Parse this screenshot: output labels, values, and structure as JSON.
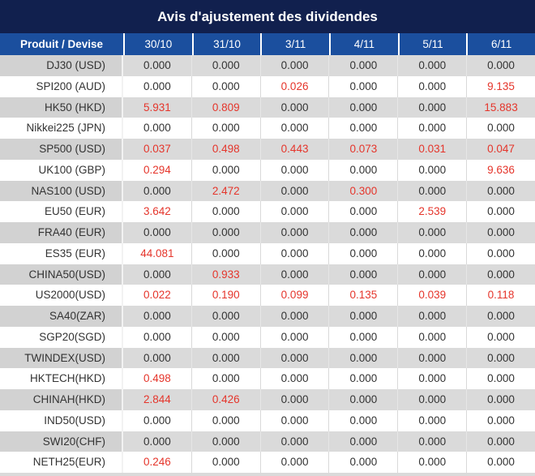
{
  "title": "Avis d'ajustement des dividendes",
  "table": {
    "product_header": "Produit / Devise",
    "date_headers": [
      "30/10",
      "31/10",
      "3/11",
      "4/11",
      "5/11",
      "6/11"
    ],
    "rows": [
      {
        "product": "DJ30 (USD)",
        "values": [
          "0.000",
          "0.000",
          "0.000",
          "0.000",
          "0.000",
          "0.000"
        ],
        "red_indices": []
      },
      {
        "product": "SPI200 (AUD)",
        "values": [
          "0.000",
          "0.000",
          "0.026",
          "0.000",
          "0.000",
          "9.135"
        ],
        "red_indices": [
          2,
          5
        ]
      },
      {
        "product": "HK50 (HKD)",
        "values": [
          "5.931",
          "0.809",
          "0.000",
          "0.000",
          "0.000",
          "15.883"
        ],
        "red_indices": [
          0,
          1,
          5
        ]
      },
      {
        "product": "Nikkei225 (JPN)",
        "values": [
          "0.000",
          "0.000",
          "0.000",
          "0.000",
          "0.000",
          "0.000"
        ],
        "red_indices": []
      },
      {
        "product": "SP500 (USD)",
        "values": [
          "0.037",
          "0.498",
          "0.443",
          "0.073",
          "0.031",
          "0.047"
        ],
        "red_indices": [
          0,
          1,
          2,
          3,
          4,
          5
        ]
      },
      {
        "product": "UK100 (GBP)",
        "values": [
          "0.294",
          "0.000",
          "0.000",
          "0.000",
          "0.000",
          "9.636"
        ],
        "red_indices": [
          0,
          5
        ]
      },
      {
        "product": "NAS100 (USD)",
        "values": [
          "0.000",
          "2.472",
          "0.000",
          "0.300",
          "0.000",
          "0.000"
        ],
        "red_indices": [
          1,
          3
        ]
      },
      {
        "product": "EU50 (EUR)",
        "values": [
          "3.642",
          "0.000",
          "0.000",
          "0.000",
          "2.539",
          "0.000"
        ],
        "red_indices": [
          0,
          4
        ]
      },
      {
        "product": "FRA40 (EUR)",
        "values": [
          "0.000",
          "0.000",
          "0.000",
          "0.000",
          "0.000",
          "0.000"
        ],
        "red_indices": []
      },
      {
        "product": "ES35 (EUR)",
        "values": [
          "44.081",
          "0.000",
          "0.000",
          "0.000",
          "0.000",
          "0.000"
        ],
        "red_indices": [
          0
        ]
      },
      {
        "product": "CHINA50(USD)",
        "values": [
          "0.000",
          "0.933",
          "0.000",
          "0.000",
          "0.000",
          "0.000"
        ],
        "red_indices": [
          1
        ]
      },
      {
        "product": "US2000(USD)",
        "values": [
          "0.022",
          "0.190",
          "0.099",
          "0.135",
          "0.039",
          "0.118"
        ],
        "red_indices": [
          0,
          1,
          2,
          3,
          4,
          5
        ]
      },
      {
        "product": "SA40(ZAR)",
        "values": [
          "0.000",
          "0.000",
          "0.000",
          "0.000",
          "0.000",
          "0.000"
        ],
        "red_indices": []
      },
      {
        "product": "SGP20(SGD)",
        "values": [
          "0.000",
          "0.000",
          "0.000",
          "0.000",
          "0.000",
          "0.000"
        ],
        "red_indices": []
      },
      {
        "product": "TWINDEX(USD)",
        "values": [
          "0.000",
          "0.000",
          "0.000",
          "0.000",
          "0.000",
          "0.000"
        ],
        "red_indices": []
      },
      {
        "product": "HKTECH(HKD)",
        "values": [
          "0.498",
          "0.000",
          "0.000",
          "0.000",
          "0.000",
          "0.000"
        ],
        "red_indices": [
          0
        ]
      },
      {
        "product": "CHINAH(HKD)",
        "values": [
          "2.844",
          "0.426",
          "0.000",
          "0.000",
          "0.000",
          "0.000"
        ],
        "red_indices": [
          0,
          1
        ]
      },
      {
        "product": "IND50(USD)",
        "values": [
          "0.000",
          "0.000",
          "0.000",
          "0.000",
          "0.000",
          "0.000"
        ],
        "red_indices": []
      },
      {
        "product": "SWI20(CHF)",
        "values": [
          "0.000",
          "0.000",
          "0.000",
          "0.000",
          "0.000",
          "0.000"
        ],
        "red_indices": []
      },
      {
        "product": "NETH25(EUR)",
        "values": [
          "0.246",
          "0.000",
          "0.000",
          "0.000",
          "0.000",
          "0.000"
        ],
        "red_indices": [
          0
        ]
      }
    ]
  },
  "colors": {
    "title_bg": "#11204e",
    "header_bg": "#1b4f9e",
    "header_text": "#ffffff",
    "row_gray_product_bg": "#d2d2d2",
    "row_gray_value_bg": "#dadada",
    "row_white_bg": "#ffffff",
    "value_text": "#333333",
    "value_highlight_red": "#e5352b"
  }
}
